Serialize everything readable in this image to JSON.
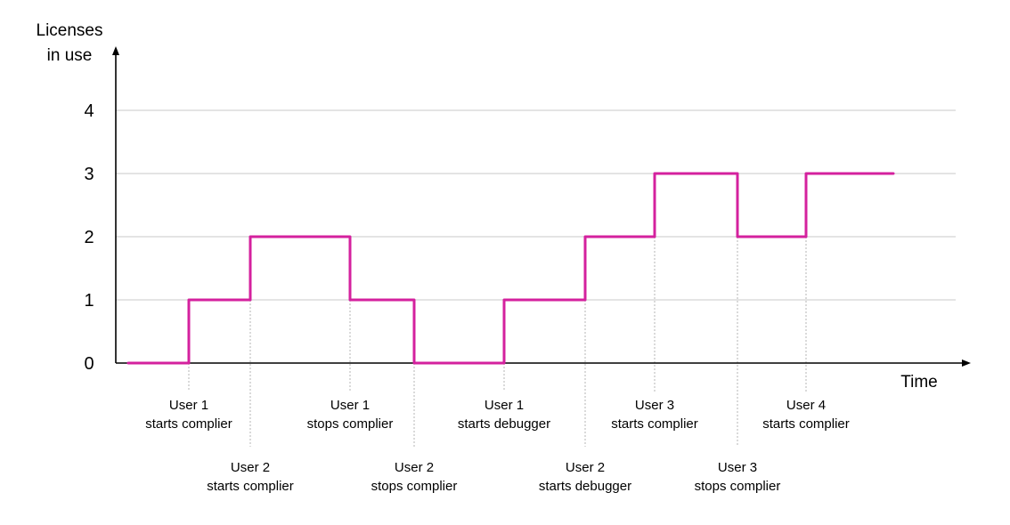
{
  "chart_data": {
    "type": "line",
    "step": true,
    "ylabel": [
      "Licenses",
      "in use"
    ],
    "xlabel": "Time",
    "yticks": [
      "0",
      "1",
      "2",
      "3",
      "4"
    ],
    "ylim": [
      0,
      4
    ],
    "grid": true,
    "line_color": "#d4219e",
    "series": [
      {
        "values": [
          0,
          1,
          2,
          1,
          0,
          1,
          2,
          3,
          2,
          3
        ]
      }
    ],
    "events": [
      {
        "lines": [
          "User 1",
          "starts complier"
        ],
        "row": "upper"
      },
      {
        "lines": [
          "User 2",
          "starts complier"
        ],
        "row": "lower"
      },
      {
        "lines": [
          "User 1",
          "stops complier"
        ],
        "row": "upper"
      },
      {
        "lines": [
          "User 2",
          "stops complier"
        ],
        "row": "lower"
      },
      {
        "lines": [
          "User 1",
          "starts debugger"
        ],
        "row": "upper"
      },
      {
        "lines": [
          "User 2",
          "starts debugger"
        ],
        "row": "lower"
      },
      {
        "lines": [
          "User 3",
          "starts complier"
        ],
        "row": "upper"
      },
      {
        "lines": [
          "User 3",
          "stops complier"
        ],
        "row": "lower"
      },
      {
        "lines": [
          "User 4",
          "starts complier"
        ],
        "row": "upper"
      }
    ]
  }
}
